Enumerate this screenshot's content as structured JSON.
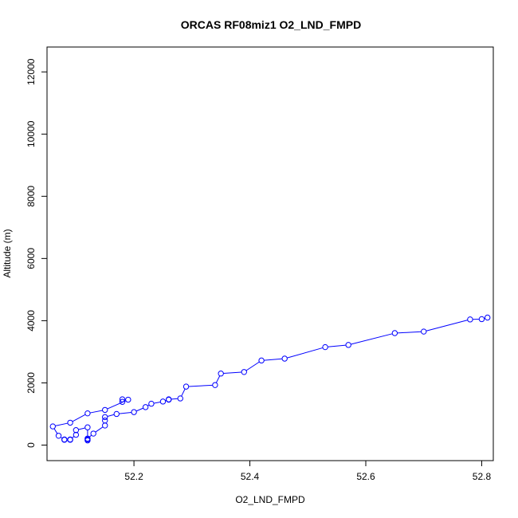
{
  "chart_data": {
    "type": "line",
    "title": "ORCAS RF08miz1 O2_LND_FMPD",
    "xlabel": "O2_LND_FMPD",
    "ylabel": "Altitude (m)",
    "xlim": [
      52.05,
      52.82
    ],
    "ylim": [
      -500,
      12800
    ],
    "x_ticks": [
      "52.2",
      "52.4",
      "52.6",
      "52.8"
    ],
    "y_ticks": [
      "0",
      "2000",
      "4000",
      "6000",
      "8000",
      "10000",
      "12000"
    ],
    "x_tick_values": [
      52.2,
      52.4,
      52.6,
      52.8
    ],
    "y_tick_values": [
      0,
      2000,
      4000,
      6000,
      8000,
      10000,
      12000
    ],
    "grid": false,
    "legend": "none",
    "line_style": "connected-circles",
    "series": [
      {
        "color": "#0000ff",
        "x": [
          52.81,
          52.8,
          52.78,
          52.7,
          52.65,
          52.57,
          52.53,
          52.46,
          52.42,
          52.39,
          52.35,
          52.34,
          52.29,
          52.28,
          52.26,
          52.26,
          52.25,
          52.23,
          52.22,
          52.2,
          52.17,
          52.15,
          52.15,
          52.15,
          52.13,
          52.12,
          52.12,
          52.12,
          52.12,
          52.1,
          52.1,
          52.09,
          52.09,
          52.08,
          52.08,
          52.07,
          52.06,
          52.09,
          52.12,
          52.15,
          52.19,
          52.18,
          52.18
        ],
        "y": [
          4100,
          4050,
          4040,
          3650,
          3600,
          3220,
          3150,
          2780,
          2720,
          2350,
          2300,
          1930,
          1880,
          1500,
          1470,
          1460,
          1400,
          1330,
          1220,
          1060,
          1000,
          900,
          790,
          630,
          370,
          210,
          180,
          150,
          570,
          480,
          330,
          180,
          170,
          180,
          170,
          300,
          600,
          720,
          1020,
          1130,
          1460,
          1470,
          1390
        ]
      }
    ]
  }
}
